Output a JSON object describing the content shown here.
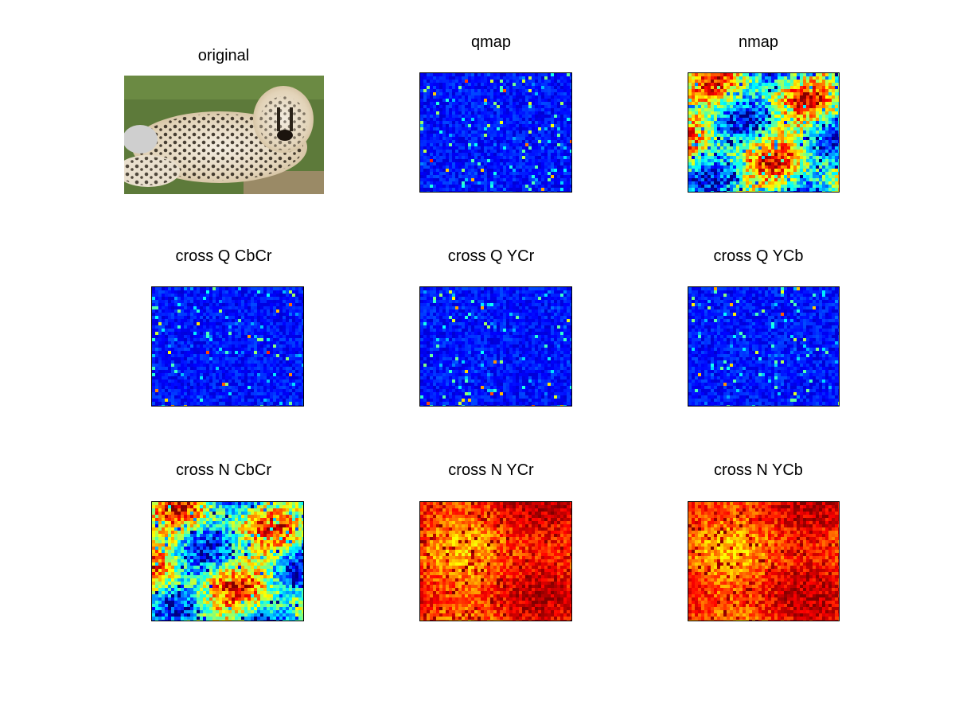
{
  "figure": {
    "panels": [
      {
        "id": "original",
        "title": "original",
        "kind": "photo"
      },
      {
        "id": "qmap",
        "title": "qmap",
        "kind": "sparse-blue"
      },
      {
        "id": "nmap",
        "title": "nmap",
        "kind": "jet-mid"
      },
      {
        "id": "cross-q-cbcr",
        "title": "cross Q CbCr",
        "kind": "sparse-blue"
      },
      {
        "id": "cross-q-ycr",
        "title": "cross Q YCr",
        "kind": "sparse-blue"
      },
      {
        "id": "cross-q-ycb",
        "title": "cross Q YCb",
        "kind": "sparse-blue"
      },
      {
        "id": "cross-n-cbcr",
        "title": "cross N CbCr",
        "kind": "jet-mid"
      },
      {
        "id": "cross-n-ycr",
        "title": "cross N YCr",
        "kind": "jet-hot"
      },
      {
        "id": "cross-n-ycb",
        "title": "cross N YCb",
        "kind": "jet-hot"
      }
    ],
    "colors": {
      "jet_dark_blue": "#00008f",
      "jet_blue": "#0000ff",
      "jet_cyan": "#00ffff",
      "jet_yellow": "#ffff00",
      "jet_red": "#ff0000",
      "jet_dark_red": "#800000"
    }
  }
}
